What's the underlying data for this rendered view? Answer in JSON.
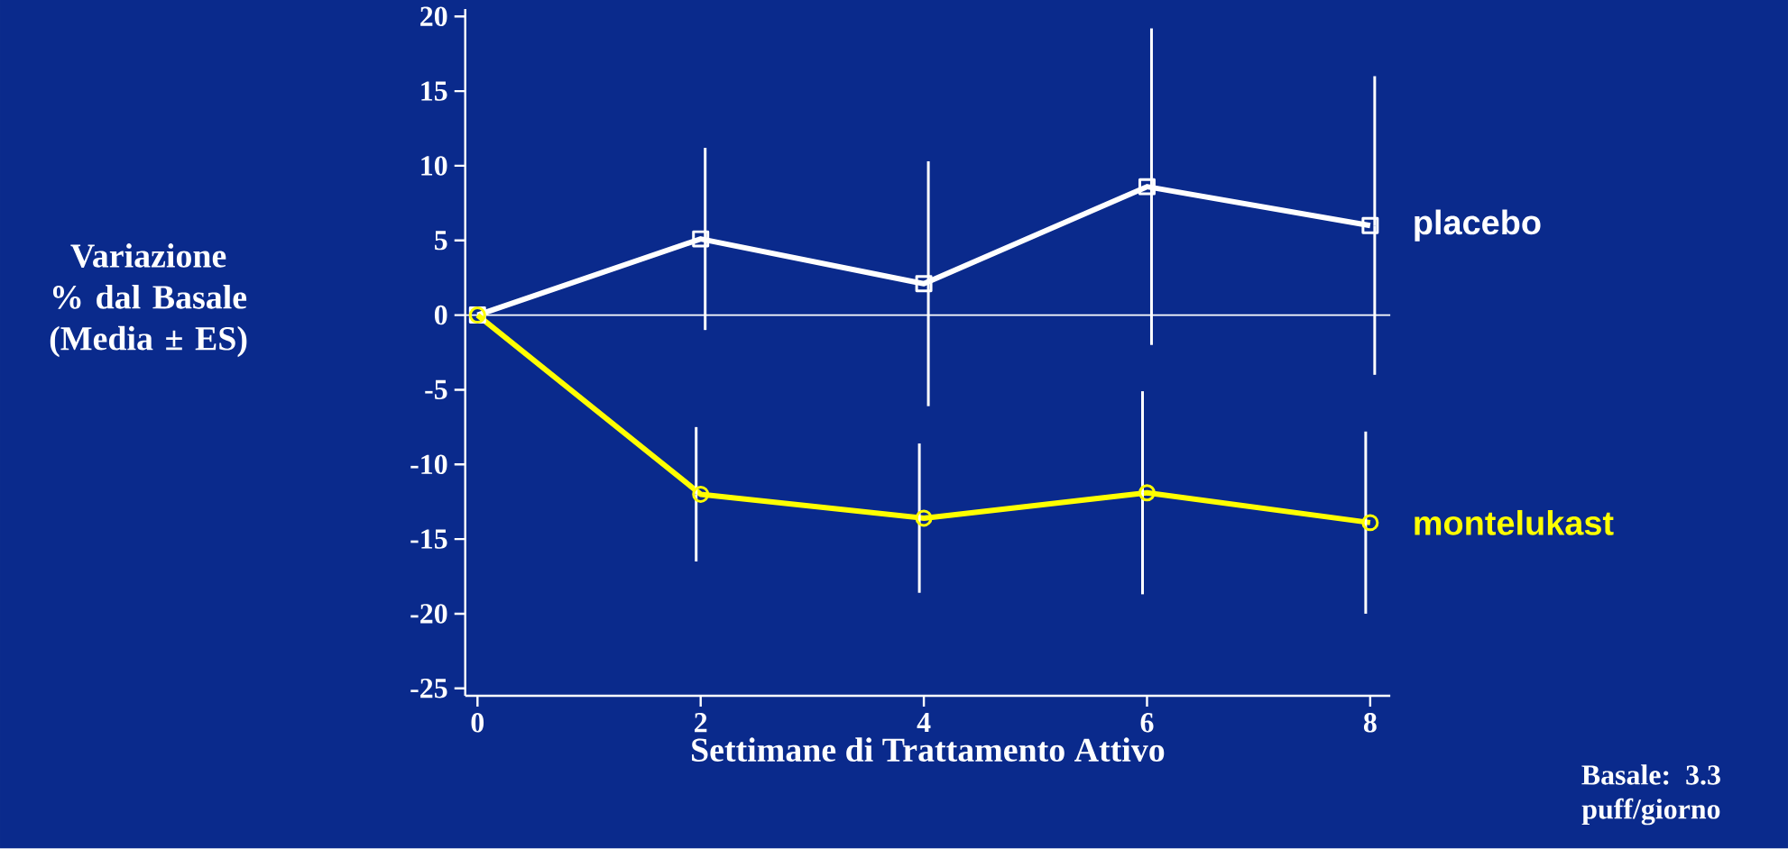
{
  "chart_data": {
    "type": "line",
    "xlabel": "Settimane di Trattamento Attivo",
    "ylabel": "Variazione % dal Basale (Media ± ES)",
    "x": [
      0,
      2,
      4,
      6,
      8
    ],
    "series": [
      {
        "name": "placebo",
        "color": "#ffffff",
        "marker": "square",
        "values": [
          0,
          5.1,
          2.1,
          8.6,
          6.0
        ],
        "errors": [
          null,
          6.1,
          8.2,
          10.6,
          10
        ]
      },
      {
        "name": "montelukast",
        "color": "#ffff00",
        "marker": "circle",
        "values": [
          0,
          -12.0,
          -13.6,
          -11.9,
          -13.9
        ],
        "errors": [
          null,
          4.5,
          5,
          6.8,
          6.1
        ]
      }
    ],
    "xlim": [
      -0.11,
      8.18
    ],
    "ylim": [
      -25.5,
      20.5
    ],
    "xticks": [
      0,
      2,
      4,
      6,
      8
    ],
    "yticks": [
      -25,
      -20,
      -15,
      -10,
      -5,
      0,
      5,
      10,
      15,
      20
    ],
    "ref_lines": [
      {
        "axis": "y",
        "value": 0,
        "color": "#ffffff"
      }
    ],
    "grid": false,
    "annotations": [
      "Basale: 3.3 puff/giorno"
    ]
  }
}
